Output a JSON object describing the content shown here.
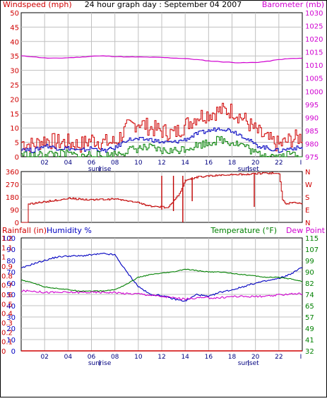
{
  "page": {
    "title": "24 hour graph day : September 04 2007",
    "background": "#ffffff",
    "border_color": "#000000"
  },
  "colors": {
    "grid": "#c0c0c0",
    "wind": "#d00000",
    "gust": "#d00000",
    "avg_wind": "#0000c0",
    "min_wind": "#008000",
    "barometer": "#d000d0",
    "direction": "#c00000",
    "rainfall": "#d00000",
    "humidity": "#0000c0",
    "temperature": "#008000",
    "dew_point": "#d000d0",
    "sun_label": "#000080"
  },
  "x_axis": {
    "ticks": [
      "02",
      "04",
      "06",
      "08",
      "10",
      "12",
      "14",
      "16",
      "18",
      "20",
      "22",
      "I"
    ],
    "tick_hours": [
      2,
      4,
      6,
      8,
      10,
      12,
      14,
      16,
      18,
      20,
      22,
      24
    ],
    "sunrise_label": "sunrise",
    "sunrise_hour": 6.7,
    "sunset_label": "sunset",
    "sunset_hour": 19.4,
    "range": [
      0,
      24
    ]
  },
  "chart_data": [
    {
      "type": "line",
      "panel": "wind",
      "left_label": "Windspeed (mph)",
      "right_label": "Barometer (mb)",
      "left_ticks": [
        "50",
        "45",
        "40",
        "35",
        "30",
        "25",
        "20",
        "15",
        "10",
        "5",
        "0"
      ],
      "right_ticks": [
        "1030",
        "1025",
        "1020",
        "1015",
        "1010",
        "1005",
        "1000",
        "995",
        "990",
        "985",
        "980",
        "975"
      ],
      "ylim_left": [
        0,
        50
      ],
      "ylim_right": [
        975,
        1030
      ],
      "x": [
        0,
        1,
        2,
        3,
        4,
        5,
        6,
        7,
        8,
        9,
        10,
        11,
        12,
        13,
        14,
        15,
        16,
        17,
        18,
        19,
        20,
        21,
        22,
        23,
        24
      ],
      "series": [
        {
          "name": "gust",
          "axis": "left",
          "values": [
            5,
            4,
            6,
            5,
            5,
            4,
            6,
            5,
            5,
            10,
            12,
            10,
            9,
            8,
            11,
            14,
            15,
            16,
            16,
            13,
            9,
            6,
            4,
            6,
            7
          ]
        },
        {
          "name": "average",
          "axis": "left",
          "values": [
            3,
            2,
            4,
            3,
            3,
            2,
            3,
            2,
            3,
            6,
            6,
            6,
            5,
            5,
            6,
            8,
            9,
            10,
            9,
            7,
            4,
            3,
            2,
            3,
            3
          ]
        },
        {
          "name": "minimum",
          "axis": "left",
          "values": [
            1,
            0,
            1,
            1,
            1,
            0,
            1,
            0,
            1,
            2,
            3,
            3,
            2,
            2,
            3,
            4,
            5,
            6,
            5,
            4,
            1,
            1,
            0,
            1,
            1
          ]
        },
        {
          "name": "barometer",
          "axis": "right",
          "values": [
            1013.5,
            1013.2,
            1012.7,
            1012.6,
            1012.8,
            1013.0,
            1013.4,
            1013.5,
            1013.3,
            1013.1,
            1013.1,
            1013.0,
            1012.9,
            1012.7,
            1012.5,
            1012.1,
            1011.6,
            1011.3,
            1011.0,
            1010.9,
            1011.0,
            1011.4,
            1012.1,
            1012.5,
            1012.6
          ]
        }
      ]
    },
    {
      "type": "line",
      "panel": "direction",
      "left_ticks": [
        "360",
        "270",
        "180",
        "90",
        "0"
      ],
      "right_ticks": [
        "N",
        "W",
        "S",
        "E",
        "N"
      ],
      "ylim": [
        0,
        360
      ],
      "x": [
        0,
        0.5,
        0.6,
        2,
        4,
        6,
        8,
        9,
        10,
        11,
        12,
        12.5,
        13,
        13.5,
        14,
        14.5,
        15,
        16,
        17,
        18,
        19,
        20,
        21,
        22,
        22.3,
        22.6,
        23,
        24
      ],
      "values": [
        0,
        0,
        130,
        145,
        170,
        160,
        165,
        150,
        140,
        115,
        110,
        100,
        150,
        200,
        300,
        310,
        320,
        330,
        335,
        340,
        340,
        345,
        350,
        345,
        160,
        130,
        140,
        130
      ],
      "spikes": [
        {
          "hour": 12.0,
          "low": 90,
          "high": 330
        },
        {
          "hour": 13.0,
          "low": 80,
          "high": 330
        },
        {
          "hour": 13.8,
          "low": 0,
          "high": 330
        },
        {
          "hour": 14.6,
          "low": 150,
          "high": 320
        },
        {
          "hour": 19.9,
          "low": 110,
          "high": 345
        }
      ]
    },
    {
      "type": "line",
      "panel": "weather",
      "labels": {
        "rainfall": "Rainfall (in)",
        "humidity": "Humidity %",
        "temperature": "Temperature (°F)",
        "dew_point": "Dew Point"
      },
      "left_ticks_humidity": [
        "100",
        "90",
        "80",
        "70",
        "60",
        "50",
        "40",
        "30",
        "20",
        "10",
        "0"
      ],
      "left_ticks_rain": [
        "1.2",
        "1.1",
        "1",
        "0.9",
        "0.8",
        "0.7",
        "0.6",
        "0.5",
        "0.4",
        "0.3",
        "0.2",
        "0.1",
        "0"
      ],
      "right_ticks": [
        "115",
        "107",
        "99",
        "90",
        "82",
        "74",
        "65",
        "57",
        "49",
        "41",
        "32"
      ],
      "ylim_humidity": [
        0,
        100
      ],
      "ylim_temp": [
        32,
        115
      ],
      "x": [
        0,
        1,
        2,
        3,
        4,
        5,
        6,
        7,
        8,
        9,
        10,
        11,
        12,
        13,
        14,
        15,
        16,
        17,
        18,
        19,
        20,
        21,
        22,
        23,
        24
      ],
      "series": [
        {
          "name": "humidity",
          "axis": "humidity",
          "values": [
            73,
            77,
            80,
            83,
            84,
            84,
            85,
            86,
            85,
            70,
            57,
            50,
            49,
            46,
            44,
            50,
            48,
            52,
            54,
            57,
            60,
            62,
            64,
            68,
            74
          ]
        },
        {
          "name": "temperature",
          "axis": "temp",
          "values": [
            84,
            82,
            79,
            78,
            77,
            76,
            76,
            76,
            77,
            81,
            86,
            88,
            89,
            90,
            92,
            91,
            90,
            90,
            89,
            88,
            87,
            86,
            86,
            85,
            83
          ]
        },
        {
          "name": "dew_point",
          "axis": "temp",
          "values": [
            76,
            76,
            75,
            75,
            75,
            75,
            75,
            75,
            75,
            74,
            74,
            73,
            72,
            71,
            70,
            71,
            71,
            71,
            72,
            72,
            72,
            72,
            73,
            74,
            74
          ]
        },
        {
          "name": "rainfall",
          "axis": "rain",
          "values": [
            0,
            0,
            0,
            0,
            0,
            0,
            0,
            0,
            0,
            0,
            0,
            0,
            0,
            0,
            0,
            0,
            0,
            0,
            0,
            0,
            0,
            0,
            0,
            0,
            0
          ]
        }
      ]
    }
  ]
}
